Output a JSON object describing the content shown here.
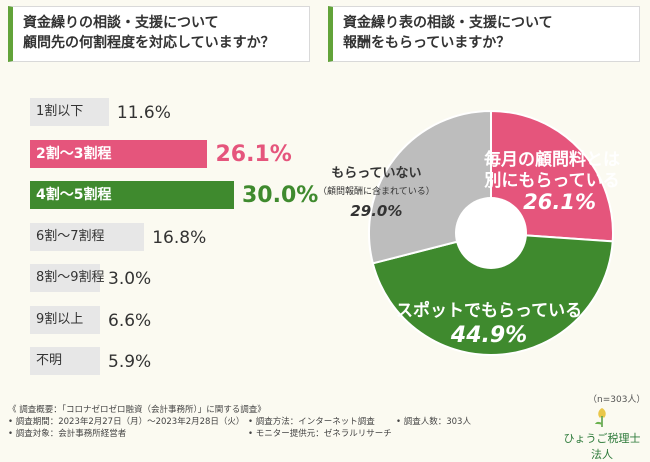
{
  "left_question": {
    "line1": "資金繰りの相談・支援について",
    "line2": "顧問先の何割程度を対応していますか？"
  },
  "right_question": {
    "line1": "資金繰り表の相談・支援について",
    "line2": "報酬をもらっていますか？"
  },
  "colors": {
    "accent_green": "#3f8a2e",
    "accent_pink": "#e5557c",
    "neutral_gray": "#bdbdbd"
  },
  "chart_data": [
    {
      "type": "bar",
      "orientation": "horizontal",
      "categories": [
        "1割以下",
        "2割〜3割程",
        "4割〜5割程",
        "6割〜7割程",
        "8割〜9割程",
        "9割以上",
        "不明"
      ],
      "values": [
        11.6,
        26.1,
        30.0,
        16.8,
        3.0,
        6.6,
        5.9
      ],
      "value_labels": [
        "11.6%",
        "26.1%",
        "30.0%",
        "16.8%",
        "3.0%",
        "6.6%",
        "5.9%"
      ],
      "highlight": [
        null,
        "pink",
        "green",
        null,
        null,
        null,
        null
      ],
      "unit": "%"
    },
    {
      "type": "pie",
      "donut": true,
      "labels": [
        "毎月の顧問料とは別にもらっている",
        "スポットでもらっている",
        "もらっていない"
      ],
      "label_lines": [
        [
          "毎月の顧問料とは",
          "別にもらっている"
        ],
        [
          "スポットでもらっている"
        ],
        [
          "もらっていない",
          "（顧問報酬に含まれている）"
        ]
      ],
      "values": [
        26.1,
        44.9,
        29.0
      ],
      "value_labels": [
        "26.1%",
        "44.9%",
        "29.0%"
      ],
      "colors": [
        "#e5557c",
        "#3f8a2e",
        "#bdbdbd"
      ]
    }
  ],
  "sample_note": "（n=303人）",
  "footer": {
    "overview": "《 調査概要：「コロナゼロゼロ融資（会計事務所）」に関する調査》",
    "period": "• 調査期間：2023年2月27日（月）〜2023年2月28日（火）",
    "target": "• 調査対象：会計事務所経営者",
    "method": "• 調査方法：インターネット調査",
    "monitor": "• モニター提供元：ゼネラルリサーチ",
    "count": "• 調査人数：303人"
  },
  "logo": {
    "name": "ひょうご税理士法人",
    "icon": "tulip-icon"
  }
}
